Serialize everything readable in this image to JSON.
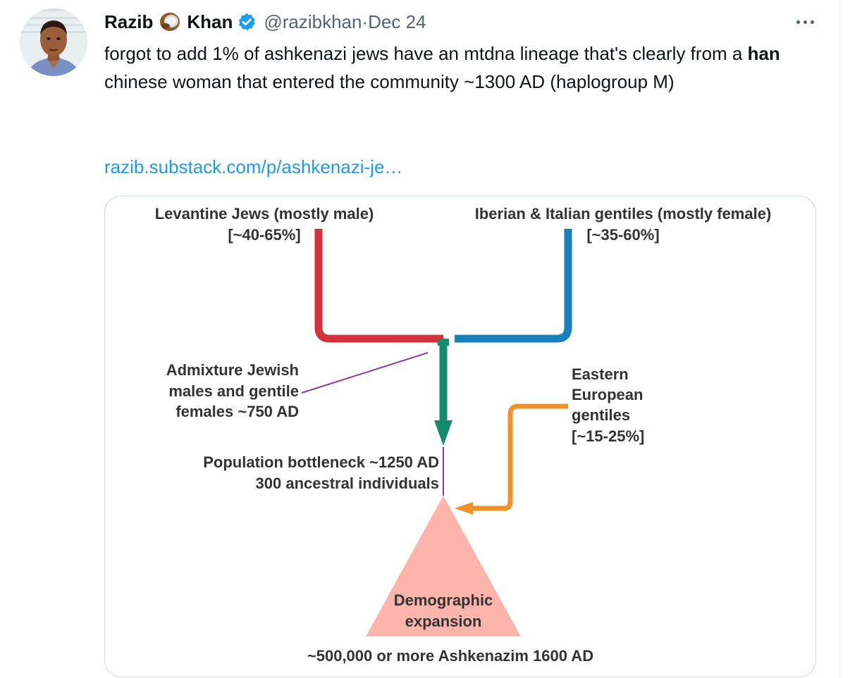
{
  "tweet": {
    "author_first": "Razib",
    "author_last": "Khan",
    "handle": "@razibkhan",
    "separator": "·",
    "date": "Dec 24",
    "text_part1": "forgot to add 1% of ashkenazi jews have an mtdna lineage that's clearly from a ",
    "text_bold": "han",
    "text_part2": " chinese woman that entered the community ~1300 AD (haplogroup M)",
    "link_text": "razib.substack.com/p/ashkenazi-je…"
  },
  "diagram": {
    "levantine_title": "Levantine Jews (mostly male)",
    "levantine_pct": "[~40-65%]",
    "iberian_title": "Iberian & Italian gentiles (mostly female)",
    "iberian_pct": "[~35-60%]",
    "admixture_line1": "Admixture Jewish",
    "admixture_line2": "males and gentile",
    "admixture_line3": "females ~750 AD",
    "eastern_line1": "Eastern",
    "eastern_line2": "European",
    "eastern_line3": "gentiles",
    "eastern_line4": "[~15-25%]",
    "bottleneck_line1": "Population bottleneck ~1250 AD",
    "bottleneck_line2": "300 ancestral individuals",
    "expansion_line1": "Demographic",
    "expansion_line2": "expansion",
    "footer": "~500,000 or more Ashkenazim 1600 AD"
  },
  "colors": {
    "levantine": "#d1323c",
    "iberian": "#1a80bb",
    "admixture": "#178a6e",
    "eastern": "#f0922a",
    "leader": "#8a3f95",
    "triangle": "#fdb5ab",
    "link": "#1d9bf0"
  },
  "icons": {
    "coconut": "coconut-icon",
    "verified": "verified-badge-icon",
    "more": "more-options-icon"
  }
}
